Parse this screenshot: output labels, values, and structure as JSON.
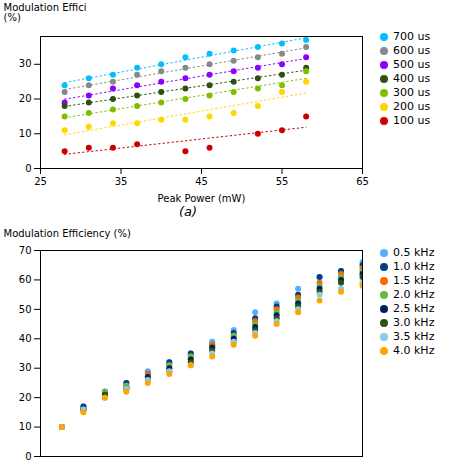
{
  "chart_data": [
    {
      "type": "scatter",
      "caption": "(a)",
      "xlabel": "Peak Power (mW)",
      "ylabel": "Modulation Effici\n(%)",
      "xlim": [
        25,
        65
      ],
      "ylim": [
        0,
        38
      ],
      "xticks": [
        25,
        35,
        45,
        55,
        65
      ],
      "yticks": [
        0,
        10,
        20,
        30
      ],
      "grid": false,
      "legend": "right",
      "series": [
        {
          "name": "700 us",
          "color": "#00BFFF",
          "line_style": "dotted",
          "x": [
            28,
            31,
            34,
            37,
            40,
            43,
            46,
            49,
            52,
            55,
            58
          ],
          "values": [
            24,
            26,
            27,
            29,
            30,
            32,
            33,
            34,
            35,
            36,
            37
          ]
        },
        {
          "name": "600 us",
          "color": "#888888",
          "line_style": "dotted",
          "x": [
            28,
            31,
            34,
            37,
            40,
            43,
            46,
            49,
            52,
            55,
            58
          ],
          "values": [
            22,
            24,
            25,
            27,
            28,
            29,
            30,
            31,
            32,
            33,
            35
          ]
        },
        {
          "name": "500 us",
          "color": "#8B00FF",
          "line_style": "dotted",
          "x": [
            28,
            31,
            34,
            37,
            40,
            43,
            46,
            49,
            52,
            55,
            58
          ],
          "values": [
            19,
            21,
            23,
            24,
            25,
            26,
            27,
            28,
            29,
            30,
            32
          ]
        },
        {
          "name": "400 us",
          "color": "#2F4F10",
          "line_style": "dotted",
          "x": [
            28,
            31,
            34,
            37,
            40,
            43,
            46,
            49,
            52,
            55,
            58
          ],
          "values": [
            18,
            19,
            20,
            21,
            22,
            23,
            24,
            25,
            26,
            27,
            29
          ]
        },
        {
          "name": "300 us",
          "color": "#7FBF00",
          "line_style": "dotted",
          "x": [
            28,
            31,
            34,
            37,
            40,
            43,
            46,
            49,
            52,
            55,
            58
          ],
          "values": [
            15,
            16,
            17,
            18,
            19,
            20,
            21,
            22,
            23,
            24,
            28
          ]
        },
        {
          "name": "200 us",
          "color": "#FFD700",
          "line_style": "dotted",
          "x": [
            28,
            31,
            34,
            37,
            40,
            43,
            46,
            49,
            52,
            55,
            58
          ],
          "values": [
            11,
            12,
            13,
            13,
            14,
            14,
            15,
            16,
            18,
            22,
            25
          ]
        },
        {
          "name": "100 us",
          "color": "#CC0000",
          "line_style": "dotted",
          "x": [
            28,
            31,
            34,
            37,
            43,
            46,
            52,
            55,
            58
          ],
          "values": [
            5,
            6,
            6,
            7,
            5,
            6,
            10,
            11,
            15
          ]
        }
      ]
    },
    {
      "type": "scatter",
      "ylabel": "Modulation Efficiency (%)",
      "xlim": [
        0,
        15
      ],
      "ylim": [
        0,
        70
      ],
      "xticks": [],
      "yticks": [
        0,
        10,
        20,
        30,
        40,
        50,
        60,
        70
      ],
      "tick_labels": "y",
      "grid": false,
      "legend": "right",
      "x": [
        1,
        2,
        3,
        4,
        5,
        6,
        7,
        8,
        9,
        10,
        11,
        12,
        13,
        14,
        15
      ],
      "series": [
        {
          "name": "0.5 kHz",
          "color": "#56AEFF",
          "values": [
            10,
            17,
            22,
            25,
            29,
            32,
            35,
            39,
            43,
            49,
            52,
            57,
            61,
            63,
            66
          ]
        },
        {
          "name": "1.0 kHz",
          "color": "#003F8A",
          "values": [
            10,
            17,
            22,
            25,
            28,
            32,
            35,
            38,
            42,
            47,
            51,
            55,
            61,
            63,
            65
          ]
        },
        {
          "name": "1.5 kHz",
          "color": "#FF6600",
          "values": [
            10,
            16,
            22,
            24,
            28,
            31,
            34,
            38,
            41,
            46,
            50,
            54,
            59,
            62,
            64
          ]
        },
        {
          "name": "2.0 kHz",
          "color": "#66BB44",
          "values": [
            10,
            16,
            22,
            24,
            27,
            31,
            34,
            37,
            41,
            45,
            49,
            53,
            58,
            61,
            63
          ]
        },
        {
          "name": "2.5 kHz",
          "color": "#001F5B",
          "values": [
            10,
            16,
            21,
            23,
            27,
            30,
            33,
            37,
            40,
            44,
            48,
            52,
            57,
            60,
            62
          ]
        },
        {
          "name": "3.0 kHz",
          "color": "#2D5016",
          "values": [
            10,
            16,
            21,
            23,
            26,
            29,
            32,
            36,
            39,
            43,
            47,
            51,
            56,
            59,
            61
          ]
        },
        {
          "name": "3.5 kHz",
          "color": "#87CEEB",
          "values": [
            10,
            16,
            20,
            23,
            26,
            29,
            31,
            35,
            39,
            42,
            46,
            50,
            55,
            57,
            59
          ]
        },
        {
          "name": "4.0 kHz",
          "color": "#FFA500",
          "values": [
            10,
            15,
            20,
            22,
            25,
            28,
            31,
            34,
            38,
            41,
            45,
            49,
            53,
            56,
            58
          ]
        }
      ]
    }
  ]
}
